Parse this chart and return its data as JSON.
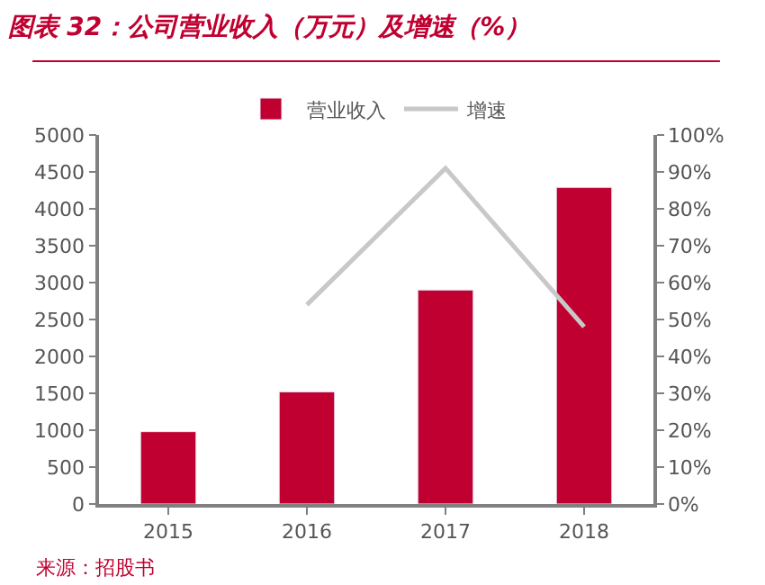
{
  "chart_data": {
    "type": "bar",
    "title": "图表 32：公司营业收入（万元）及增速（%）",
    "categories": [
      "2015",
      "2016",
      "2017",
      "2018"
    ],
    "series": [
      {
        "name": "营业收入",
        "color": "#c00030",
        "values": [
          980,
          1520,
          2900,
          4290
        ]
      },
      {
        "name": "增速",
        "type": "line",
        "axis": "y2",
        "color": "#c8c8c8",
        "values": [
          null,
          54,
          91,
          48
        ]
      }
    ],
    "ylim": [
      0,
      5000
    ],
    "yticks": [
      0,
      500,
      1000,
      1500,
      2000,
      2500,
      3000,
      3500,
      4000,
      4500,
      5000
    ],
    "y2lim": [
      0,
      100
    ],
    "y2ticks": [
      {
        "value": 0,
        "label": "0%"
      },
      {
        "value": 10,
        "label": "10%"
      },
      {
        "value": 20,
        "label": "20%"
      },
      {
        "value": 30,
        "label": "30%"
      },
      {
        "value": 40,
        "label": "40%"
      },
      {
        "value": 50,
        "label": "50%"
      },
      {
        "value": 60,
        "label": "60%"
      },
      {
        "value": 70,
        "label": "70%"
      },
      {
        "value": 80,
        "label": "80%"
      },
      {
        "value": 90,
        "label": "90%"
      },
      {
        "value": 100,
        "label": "100%"
      }
    ],
    "legend": "top",
    "marker": "none",
    "annotations": [
      "来源：招股书"
    ]
  }
}
